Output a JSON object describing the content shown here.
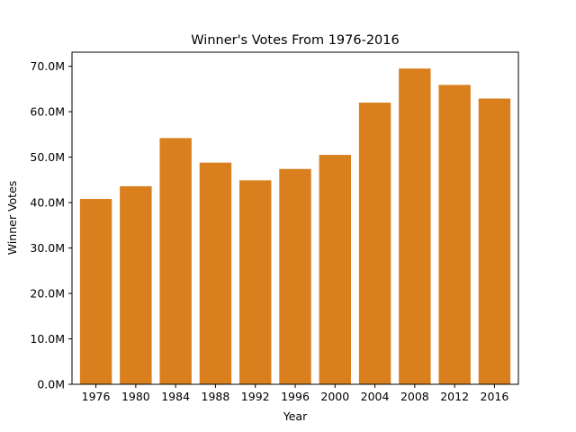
{
  "chart_data": {
    "type": "bar",
    "title": "Winner's Votes From 1976-2016",
    "xlabel": "Year",
    "ylabel": "Winner Votes",
    "categories": [
      "1976",
      "1980",
      "1984",
      "1988",
      "1992",
      "1996",
      "2000",
      "2004",
      "2008",
      "2012",
      "2016"
    ],
    "values": [
      40.8,
      43.6,
      54.2,
      48.8,
      44.9,
      47.4,
      50.5,
      62.0,
      69.5,
      65.9,
      62.9
    ],
    "ylim": [
      0,
      73.1
    ],
    "yticks": [
      0,
      10,
      20,
      30,
      40,
      50,
      60,
      70
    ],
    "ytick_labels": [
      "0.0M",
      "10.0M",
      "20.0M",
      "30.0M",
      "40.0M",
      "50.0M",
      "60.0M",
      "70.0M"
    ],
    "bar_color": "#d97f1e",
    "grid": false,
    "legend": "none"
  }
}
